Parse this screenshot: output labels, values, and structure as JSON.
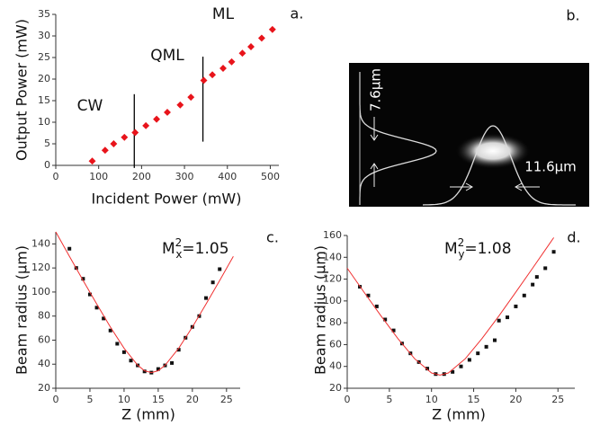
{
  "chart_data": [
    {
      "type": "scatter",
      "panel_label": "a.",
      "x_label": "Incident Power (mW)",
      "y_label": "Output Power (mW)",
      "xlim": [
        0,
        520
      ],
      "xticks": [
        0,
        100,
        200,
        300,
        400,
        500
      ],
      "ylim": [
        0,
        35
      ],
      "yticks": [
        0,
        5,
        10,
        15,
        20,
        25,
        30,
        35
      ],
      "annotations": [
        "CW",
        "QML",
        "ML"
      ],
      "vlines": [
        {
          "x": 183,
          "y": [
            -0.6,
            16.5
          ]
        },
        {
          "x": 343,
          "y": [
            5.5,
            25.2
          ]
        }
      ],
      "series": [
        {
          "type": "scatter",
          "color": "#e8141b",
          "x": [
            85,
            115,
            135,
            160,
            185,
            210,
            235,
            260,
            290,
            315,
            345,
            365,
            390,
            410,
            435,
            455,
            480,
            505
          ],
          "values": [
            1,
            3.5,
            5,
            6.5,
            7.6,
            9.2,
            10.7,
            12.3,
            14,
            15.8,
            19.7,
            21,
            22.5,
            24,
            26,
            27.5,
            29.5,
            31.5
          ]
        }
      ]
    },
    {
      "type": "image",
      "panel_label": "b.",
      "labels": [
        "7.6μm",
        "11.6μm"
      ]
    },
    {
      "type": "scatter",
      "panel_label": "c.",
      "x_label": "Z (mm)",
      "y_label": "Beam radius (μm)",
      "annotation": {
        "base": "M",
        "sup": "2",
        "sub": "x",
        "rest": "=1.05"
      },
      "xlim": [
        0,
        27
      ],
      "xticks": [
        0,
        5,
        10,
        15,
        20,
        25
      ],
      "ylim": [
        20,
        150
      ],
      "yticks": [
        20,
        40,
        60,
        80,
        100,
        120,
        140
      ],
      "series": [
        {
          "type": "scatter",
          "color": "#111111",
          "x": [
            2,
            3,
            4,
            5,
            6,
            7,
            8,
            9,
            10,
            11,
            12,
            13,
            14,
            15,
            16,
            17,
            18,
            19,
            20,
            21,
            22,
            23,
            24
          ],
          "values": [
            136,
            120,
            111,
            98,
            87,
            78,
            68,
            57,
            50,
            43,
            39,
            34,
            33,
            36,
            39,
            41,
            52,
            62,
            71,
            80,
            95,
            108,
            119
          ]
        },
        {
          "type": "line",
          "color": "#f03030",
          "x": [
            0,
            2,
            4,
            6,
            8,
            10,
            12,
            13,
            14,
            15,
            16,
            18,
            20,
            22,
            24,
            26
          ],
          "values": [
            150,
            129.7,
            109.6,
            89.9,
            70.9,
            53.3,
            39.1,
            34.6,
            33,
            34.6,
            39.1,
            53.3,
            70.9,
            89.9,
            109.6,
            129.7
          ]
        }
      ]
    },
    {
      "type": "scatter",
      "panel_label": "d.",
      "x_label": "Z (mm)",
      "y_label": "Beam radius (μm)",
      "annotation": {
        "base": "M",
        "sup": "2",
        "sub": "y",
        "rest": "=1.08"
      },
      "xlim": [
        0,
        27
      ],
      "xticks": [
        0,
        5,
        10,
        15,
        20,
        25
      ],
      "ylim": [
        20,
        160
      ],
      "yticks": [
        20,
        40,
        60,
        80,
        100,
        120,
        140,
        160
      ],
      "series": [
        {
          "type": "scatter",
          "color": "#111111",
          "x": [
            1.5,
            2.5,
            3.5,
            4.5,
            5.5,
            6.5,
            7.5,
            8.5,
            9.5,
            10.5,
            11.5,
            12.5,
            13.5,
            14.5,
            15.5,
            16.5,
            17.5,
            18,
            19,
            20,
            21,
            22,
            22.5,
            23.5,
            24.5
          ],
          "values": [
            113,
            105,
            95,
            83,
            73,
            61,
            52,
            44,
            38,
            33,
            33,
            35,
            40,
            46,
            52,
            58,
            64,
            82,
            85,
            95,
            105,
            115,
            122,
            130,
            145
          ]
        },
        {
          "type": "line",
          "color": "#f03030",
          "x": [
            0,
            2,
            4,
            6,
            8,
            10,
            11,
            12,
            14,
            16,
            18,
            20,
            22,
            24,
            24.5
          ],
          "values": [
            130,
            108,
            86.4,
            65.6,
            47,
            34,
            32,
            34,
            47,
            65.6,
            86.4,
            108,
            130,
            152.4,
            158
          ]
        }
      ]
    }
  ]
}
